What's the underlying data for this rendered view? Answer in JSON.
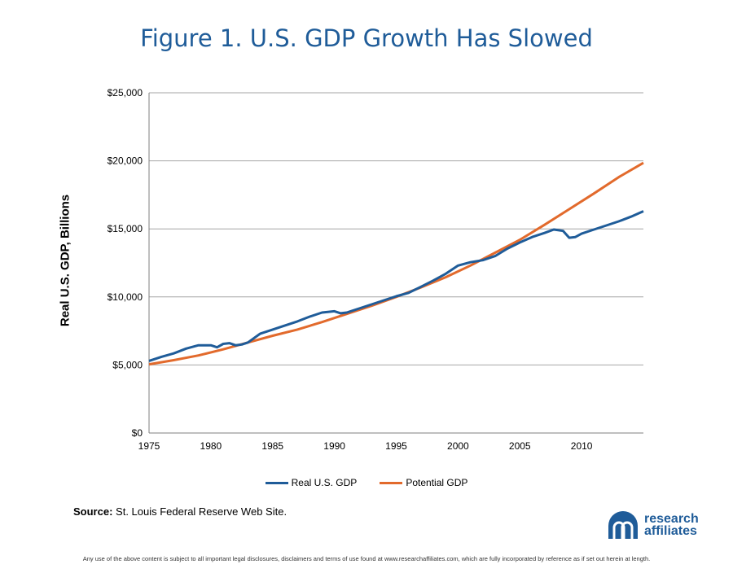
{
  "title": "Figure 1. U.S. GDP Growth Has Slowed",
  "source_label": "Source:",
  "source_text": "St. Louis Federal Reserve Web Site.",
  "logo": {
    "line1": "research",
    "line2": "affiliates",
    "mark": "ra-logo-mark"
  },
  "disclaimer": "Any use of the above content is subject to all important legal disclosures, disclaimers and terms of use found at www.researchaffiliates.com, which are fully incorporated by reference as if set out herein at length.",
  "colors": {
    "title": "#1f5c99",
    "real": "#1f5c99",
    "potential": "#e26a2c",
    "grid": "#a6a6a6"
  },
  "chart_data": {
    "type": "line",
    "title": "Figure 1. U.S. GDP Growth Has Slowed",
    "xlabel": "",
    "ylabel": "Real U.S. GDP, Billions",
    "xlim": [
      1975,
      2015
    ],
    "ylim": [
      0,
      25000
    ],
    "x_ticks": [
      1975,
      1980,
      1985,
      1990,
      1995,
      2000,
      2005,
      2010
    ],
    "x_tick_labels": [
      "1975",
      "1980",
      "1985",
      "1990",
      "1995",
      "2000",
      "2005",
      "2010"
    ],
    "y_ticks": [
      0,
      5000,
      10000,
      15000,
      20000,
      25000
    ],
    "y_tick_labels": [
      "$0",
      "$5,000",
      "$10,000",
      "$15,000",
      "$20,000",
      "$25,000"
    ],
    "grid": "horizontal",
    "legend": "bottom",
    "series": [
      {
        "name": "Real U.S. GDP",
        "color": "#1f5c99",
        "x": [
          1975,
          1976,
          1977,
          1978,
          1979,
          1980,
          1980.5,
          1981,
          1981.5,
          1982,
          1982.5,
          1983,
          1984,
          1985,
          1986,
          1987,
          1988,
          1989,
          1990,
          1990.5,
          1991,
          1992,
          1993,
          1994,
          1995,
          1996,
          1997,
          1998,
          1999,
          2000,
          2001,
          2002,
          2003,
          2004,
          2005,
          2006,
          2007,
          2007.75,
          2008.5,
          2009,
          2009.5,
          2010,
          2011,
          2012,
          2013,
          2014,
          2015
        ],
        "y": [
          5300,
          5600,
          5850,
          6200,
          6450,
          6450,
          6300,
          6550,
          6600,
          6450,
          6500,
          6650,
          7300,
          7600,
          7900,
          8200,
          8550,
          8850,
          8950,
          8800,
          8850,
          9150,
          9450,
          9750,
          10050,
          10300,
          10750,
          11200,
          11700,
          12300,
          12550,
          12700,
          13000,
          13550,
          14000,
          14400,
          14700,
          14950,
          14850,
          14350,
          14400,
          14650,
          14950,
          15250,
          15550,
          15900,
          16300
        ]
      },
      {
        "name": "Potential GDP",
        "color": "#e26a2c",
        "x": [
          1975,
          1977,
          1979,
          1981,
          1983,
          1985,
          1987,
          1989,
          1991,
          1993,
          1995,
          1997,
          1999,
          2001,
          2003,
          2005,
          2007,
          2009,
          2011,
          2013,
          2015
        ],
        "y": [
          5050,
          5350,
          5700,
          6150,
          6650,
          7150,
          7600,
          8150,
          8750,
          9350,
          10000,
          10700,
          11450,
          12300,
          13250,
          14200,
          15300,
          16450,
          17600,
          18800,
          19850
        ]
      }
    ]
  }
}
